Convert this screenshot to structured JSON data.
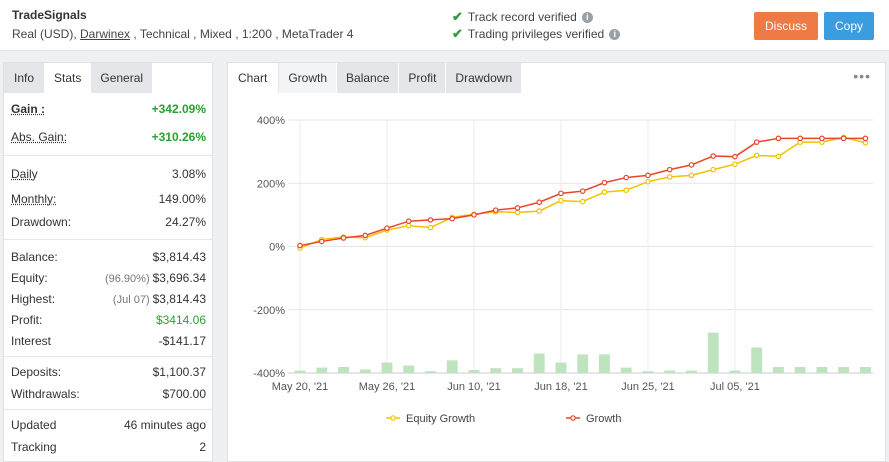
{
  "header": {
    "account_name": "TradeSignals",
    "meta_prefix": "Real (USD), ",
    "broker": "Darwinex",
    "meta_suffix": " , Technical , Mixed , 1:200 , MetaTrader 4",
    "verify1": "Track record verified",
    "verify2": "Trading privileges verified",
    "discuss_label": "Discuss",
    "copy_label": "Copy"
  },
  "left_tabs": [
    "Info",
    "Stats",
    "General"
  ],
  "stats": {
    "gain_label": "Gain :",
    "gain_value": "+342.09%",
    "abs_gain_label": "Abs. Gain:",
    "abs_gain_value": "+310.26%",
    "daily_label": "Daily",
    "daily_value": "3.08%",
    "monthly_label": "Monthly:",
    "monthly_value": "149.00%",
    "drawdown_label": "Drawdown:",
    "drawdown_value": "24.27%",
    "balance_label": "Balance:",
    "balance_value": "$3,814.43",
    "equity_label": "Equity:",
    "equity_sub": "(96.90%)",
    "equity_value": "$3,696.34",
    "highest_label": "Highest:",
    "highest_sub": "(Jul 07)",
    "highest_value": "$3,814.43",
    "profit_label": "Profit:",
    "profit_value": "$3414.06",
    "interest_label": "Interest",
    "interest_value": "-$141.17",
    "deposits_label": "Deposits:",
    "deposits_value": "$1,100.37",
    "withdrawals_label": "Withdrawals:",
    "withdrawals_value": "$700.00",
    "updated_label": "Updated",
    "updated_value": "46 minutes ago",
    "tracking_label": "Tracking",
    "tracking_value": "2"
  },
  "right_tabs": [
    "Chart",
    "Growth",
    "Balance",
    "Profit",
    "Drawdown"
  ],
  "more_icon": "•••",
  "chart_data": {
    "type": "line",
    "x": [
      "May 20, '21",
      "May 21, '21",
      "May 24, '21",
      "May 25, '21",
      "May 26, '21",
      "May 27, '21",
      "May 28, '21",
      "Jun 01, '21",
      "Jun 02, '21",
      "Jun 03, '21",
      "Jun 04, '21",
      "Jun 10, '21",
      "Jun 11, '21",
      "Jun 14, '21",
      "Jun 15, '21",
      "Jun 17, '21",
      "Jun 18, '21",
      "Jun 21, '21",
      "Jun 22, '21",
      "Jun 23, '21",
      "Jun 25, '21",
      "Jun 28, '21",
      "Jun 29, '21",
      "Jul 01, '21",
      "Jul 02, '21",
      "Jul 05, '21",
      "Jul 07, '21"
    ],
    "xticks": [
      "May 20, '21",
      "May 26, '21",
      "Jun 10, '21",
      "Jun 18, '21",
      "Jun 25, '21",
      "Jul 05, '21"
    ],
    "xtick_index": [
      0,
      4,
      8,
      12,
      16,
      20
    ],
    "yticks": [
      "400%",
      "200%",
      "0%",
      "-200%",
      "-400%"
    ],
    "ylim": [
      -400,
      400
    ],
    "series": [
      {
        "name": "Equity Growth",
        "color": "#f2c200",
        "values": [
          -5,
          22,
          30,
          28,
          52,
          66,
          60,
          92,
          102,
          110,
          108,
          112,
          145,
          142,
          172,
          178,
          205,
          220,
          225,
          243,
          260,
          288,
          285,
          330,
          330,
          345,
          328
        ]
      },
      {
        "name": "Growth",
        "color": "#e8452c",
        "values": [
          3,
          16,
          27,
          35,
          58,
          80,
          84,
          88,
          100,
          115,
          122,
          140,
          168,
          175,
          202,
          218,
          225,
          243,
          258,
          286,
          284,
          330,
          342,
          342,
          342,
          342,
          342
        ]
      }
    ],
    "bars": [
      {
        "color": "#bfe3bf",
        "values": [
          8,
          18,
          20,
          12,
          35,
          25,
          6,
          42,
          10,
          16,
          16,
          65,
          35,
          62,
          62,
          18,
          6,
          8,
          8,
          135,
          8,
          85,
          20,
          20,
          20,
          20,
          20
        ]
      }
    ]
  }
}
